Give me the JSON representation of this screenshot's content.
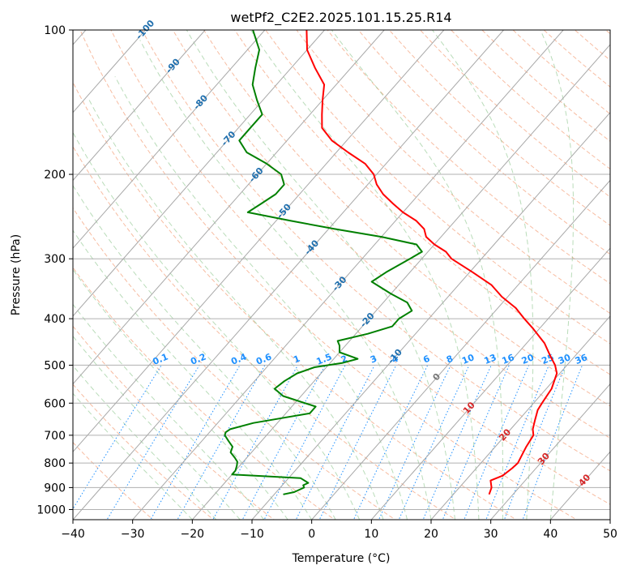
{
  "chart_data": {
    "type": "line",
    "subtype": "skew-T log-P diagram",
    "title": "wetPf2_C2E2.2025.101.15.25.R14",
    "xlabel": "Temperature (°C)",
    "ylabel": "Pressure (hPa)",
    "xlim": [
      -40,
      50
    ],
    "ylim": [
      1050,
      100
    ],
    "y_scale": "log",
    "grid": true,
    "x_ticks": [
      -40,
      -30,
      -20,
      -10,
      0,
      10,
      20,
      30,
      40,
      50
    ],
    "y_ticks": [
      100,
      200,
      300,
      400,
      500,
      600,
      700,
      800,
      900,
      1000
    ],
    "mixing_ratio_labels": [
      "0.1",
      "0.2",
      "0.4",
      "0.6",
      "1",
      "1.5",
      "2",
      "3",
      "4",
      "6",
      "8",
      "10",
      "13",
      "16",
      "20",
      "25",
      "30",
      "36"
    ],
    "mixing_ratio_values": [
      0.1,
      0.2,
      0.4,
      0.6,
      1,
      1.5,
      2,
      3,
      4,
      6,
      8,
      10,
      13,
      16,
      20,
      25,
      30,
      36
    ],
    "isotherm_labels_upper": [
      "-100",
      "-90",
      "-80",
      "-70",
      "-60",
      "-50",
      "-40",
      "-30",
      "-20",
      "-10"
    ],
    "isotherm_labels_lower": [
      "0",
      "10",
      "20",
      "30",
      "40"
    ],
    "series": [
      {
        "color": "#ff0000",
        "pressure": [
          930,
          900,
          870,
          850,
          820,
          800,
          770,
          740,
          700,
          680,
          650,
          620,
          600,
          560,
          520,
          500,
          480,
          450,
          420,
          400,
          380,
          360,
          340,
          320,
          300,
          290,
          280,
          270,
          260,
          250,
          240,
          230,
          220,
          210,
          200,
          190,
          180,
          170,
          160,
          150,
          140,
          130,
          120,
          110,
          100
        ],
        "temperature": [
          26.0,
          25.4,
          24.2,
          25.5,
          26.0,
          26.2,
          25.7,
          25.2,
          24.7,
          23.7,
          22.7,
          21.7,
          21.4,
          20.9,
          19.5,
          18.0,
          16.0,
          13.0,
          9.0,
          6.0,
          3.0,
          -1.0,
          -4.5,
          -9.5,
          -15.0,
          -17.0,
          -20.0,
          -22.5,
          -24.0,
          -26.5,
          -30.0,
          -33.0,
          -36.0,
          -38.5,
          -40.5,
          -43.5,
          -48.0,
          -52.5,
          -56.0,
          -58.0,
          -60.0,
          -62.0,
          -66.0,
          -70.0,
          -73.0
        ]
      },
      {
        "color": "#008000",
        "pressure": [
          930,
          920,
          900,
          890,
          880,
          860,
          845,
          830,
          810,
          795,
          780,
          760,
          740,
          720,
          700,
          690,
          680,
          660,
          630,
          610,
          580,
          560,
          540,
          520,
          505,
          495,
          485,
          470,
          455,
          445,
          430,
          415,
          400,
          385,
          370,
          355,
          335,
          320,
          300,
          290,
          280,
          270,
          260,
          250,
          240,
          230,
          220,
          210,
          200,
          190,
          180,
          170,
          160,
          150,
          140,
          130,
          120,
          110,
          100
        ],
        "dewpoint": [
          -8.5,
          -7.0,
          -6.0,
          -6.5,
          -6.0,
          -8.0,
          -20.0,
          -20.0,
          -20.5,
          -21.0,
          -22.0,
          -23.5,
          -24.0,
          -25.5,
          -27.0,
          -27.3,
          -27.0,
          -24.0,
          -16.0,
          -16.0,
          -23.0,
          -25.5,
          -25.0,
          -24.0,
          -22.0,
          -18.0,
          -16.0,
          -20.0,
          -21.0,
          -22.0,
          -18.0,
          -15.0,
          -15.0,
          -14.0,
          -16.0,
          -20.0,
          -25.0,
          -24.0,
          -22.0,
          -21.0,
          -23.0,
          -30.0,
          -39.0,
          -47.5,
          -56.0,
          -55.0,
          -54.0,
          -54.0,
          -56.0,
          -60.0,
          -65.0,
          -68.0,
          -68.0,
          -68.0,
          -71.0,
          -74.0,
          -76.0,
          -78.0,
          -82.0
        ]
      }
    ]
  }
}
